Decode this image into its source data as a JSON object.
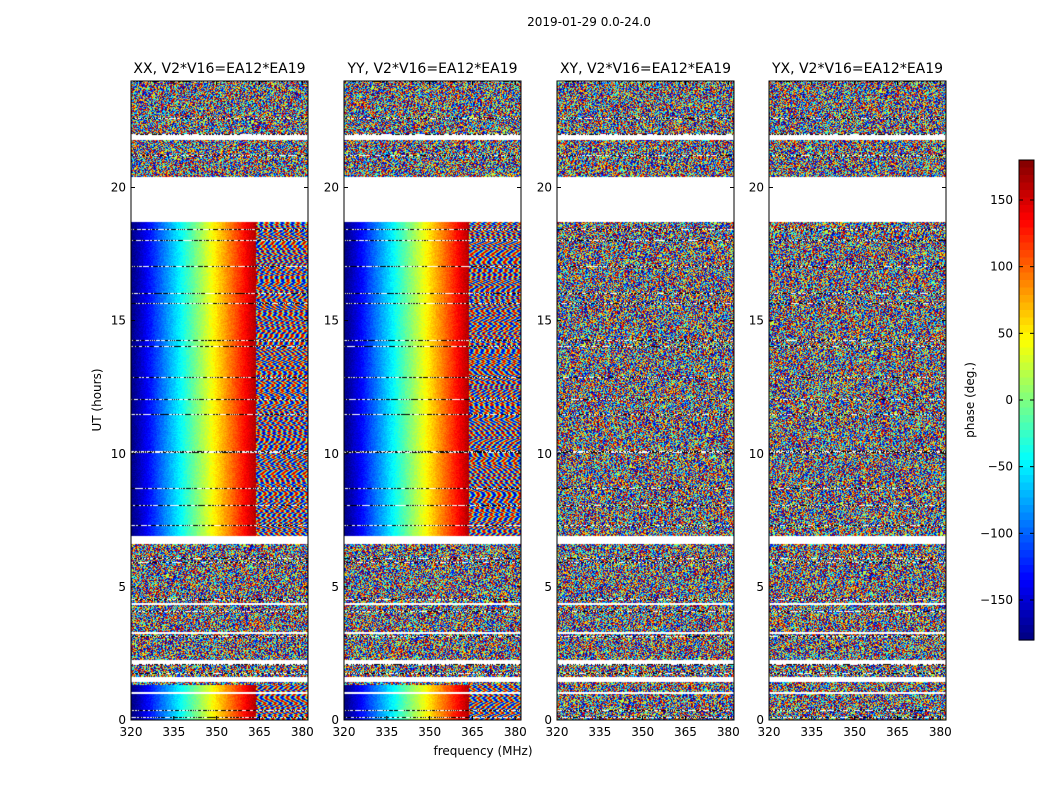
{
  "chart_data": {
    "type": "heatmap",
    "suptitle": "2019-01-29 0.0-24.0",
    "xlabel": "frequency (MHz)",
    "ylabel": "UT (hours)",
    "xlim": [
      320,
      382
    ],
    "ylim": [
      0,
      24
    ],
    "xticks": [
      320,
      335,
      350,
      365,
      380
    ],
    "yticks": [
      0,
      5,
      10,
      15,
      20
    ],
    "colorbar": {
      "label": "phase (deg.)",
      "range": [
        -180,
        180
      ],
      "ticks": [
        150,
        100,
        50,
        0,
        -50,
        -100,
        -150
      ],
      "tick_labels": [
        "150",
        "100",
        "50",
        "0",
        "−50",
        "−100",
        "−150"
      ],
      "colormap": "jet"
    },
    "flagged_time_ranges": [
      [
        0.95,
        1.05
      ],
      [
        1.4,
        1.6
      ],
      [
        2.1,
        2.25
      ],
      [
        3.2,
        3.3
      ],
      [
        4.3,
        4.4
      ],
      [
        6.6,
        6.9
      ],
      [
        18.7,
        20.4
      ],
      [
        21.8,
        22.0
      ]
    ],
    "panels": [
      {
        "title": "XX, V2*V16=EA12*EA19",
        "coherent_hours": [
          6.9,
          18.7
        ],
        "phase_gradient": true,
        "coherent_low_hours": [
          0.0,
          1.3
        ]
      },
      {
        "title": "YY, V2*V16=EA12*EA19",
        "coherent_hours": [
          6.9,
          18.7
        ],
        "phase_gradient": true,
        "coherent_low_hours": [
          0.0,
          1.3
        ]
      },
      {
        "title": "XY, V2*V16=EA12*EA19",
        "coherent_hours": [],
        "phase_gradient": false,
        "coherent_low_hours": []
      },
      {
        "title": "YX, V2*V16=EA12*EA19",
        "coherent_hours": [],
        "phase_gradient": false,
        "coherent_low_hours": []
      }
    ]
  }
}
